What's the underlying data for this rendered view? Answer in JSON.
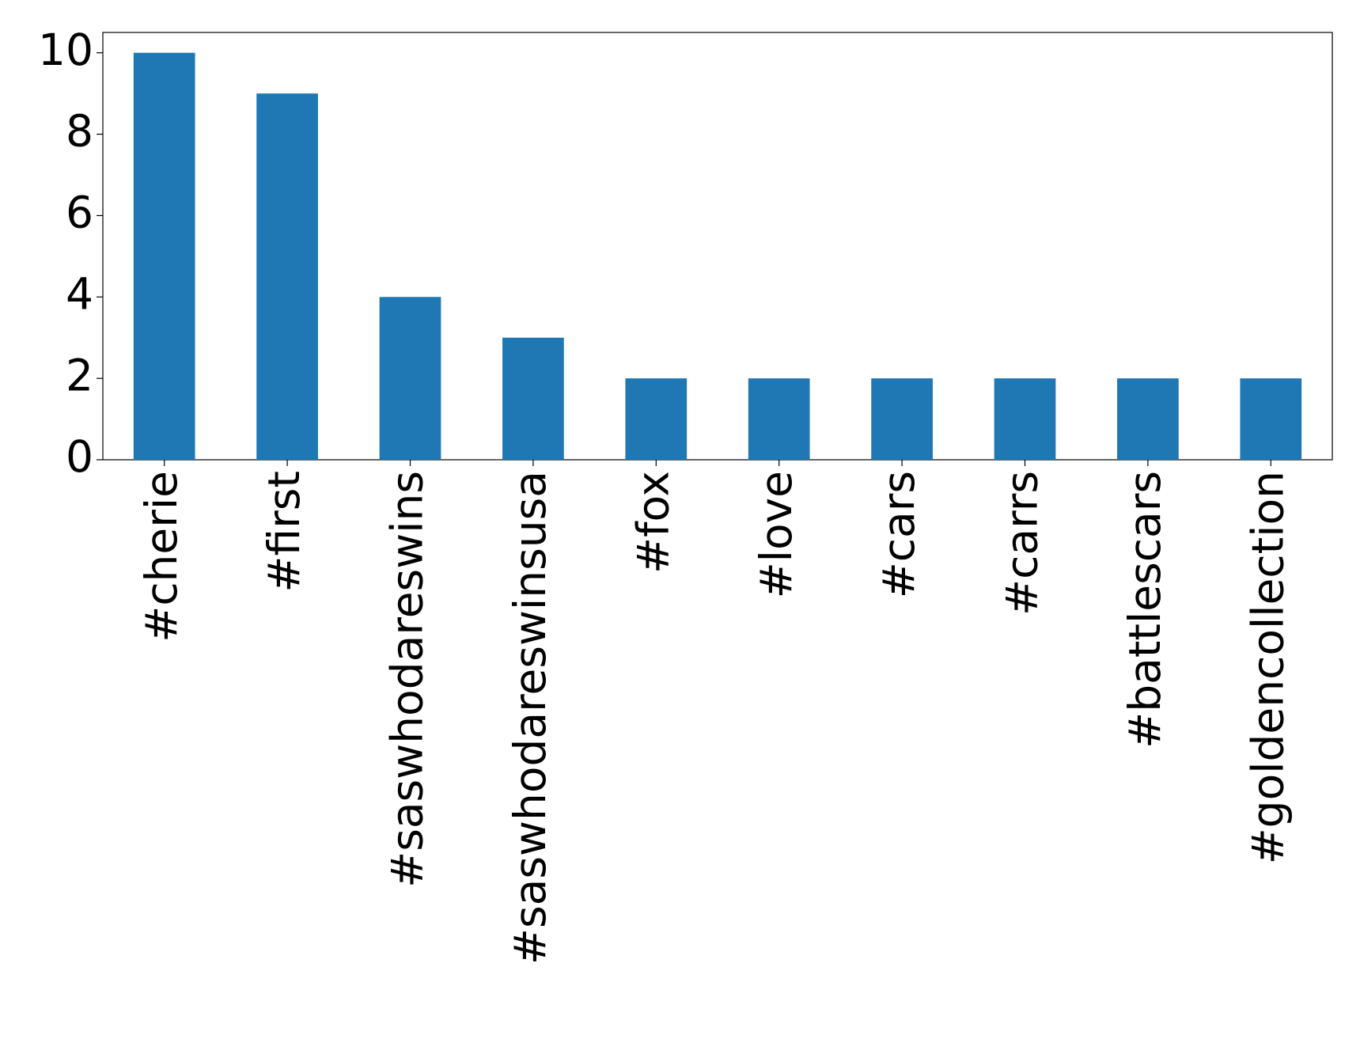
{
  "chart_data": {
    "type": "bar",
    "categories": [
      "#cherie",
      "#first",
      "#saswhodareswins",
      "#saswhodareswinsusa",
      "#fox",
      "#love",
      "#cars",
      "#carrs",
      "#battlescars",
      "#goldencollection"
    ],
    "values": [
      10,
      9,
      4,
      3,
      2,
      2,
      2,
      2,
      2,
      2
    ],
    "color": "#1f77b4",
    "ylim": [
      0,
      10.5
    ],
    "yticks": [
      0,
      2,
      4,
      6,
      8,
      10
    ],
    "grid": false
  }
}
